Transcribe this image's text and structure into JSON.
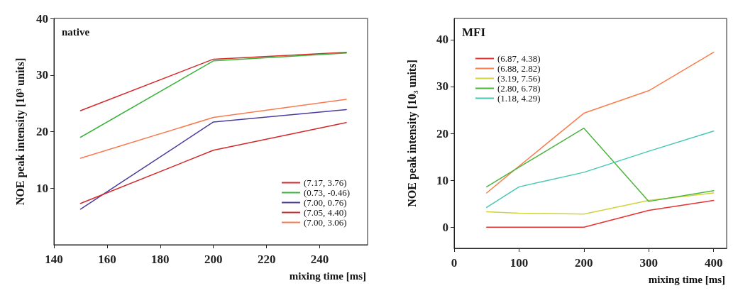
{
  "chart_data": [
    {
      "type": "line",
      "title": "native",
      "xlabel": "mixing time [ms]",
      "ylabel": "NOE peak intensity [10³ units]",
      "x": [
        150,
        200,
        250
      ],
      "xlim": [
        140,
        258
      ],
      "xticks": [
        140,
        160,
        180,
        200,
        220,
        240
      ],
      "ylim": [
        0,
        40
      ],
      "yticks": [
        10,
        20,
        30,
        40
      ],
      "grid": false,
      "legend": "bottom right",
      "marker": "none",
      "line_style": "solid",
      "series": [
        {
          "name": "(7.17, 3.76)",
          "color": "#d7282a",
          "values": [
            23.7,
            32.8,
            34.0
          ]
        },
        {
          "name": "(0.73, -0.46)",
          "color": "#3cb43c",
          "values": [
            19.0,
            32.5,
            33.9
          ]
        },
        {
          "name": "(7.00, 0.76)",
          "color": "#4a3c9c",
          "values": [
            6.3,
            21.7,
            23.9
          ]
        },
        {
          "name": "(7.05, 4.40)",
          "color": "#d22a2a",
          "values": [
            7.3,
            16.7,
            21.6
          ]
        },
        {
          "name": "(7.00, 3.06)",
          "color": "#fa7a50",
          "values": [
            15.3,
            22.5,
            25.7
          ]
        }
      ]
    },
    {
      "type": "line",
      "title": "MFI",
      "xlabel": "mixing time [ms]",
      "ylabel": "NOE peak intensity [10₃ units]",
      "x": [
        50,
        100,
        200,
        300,
        400
      ],
      "xlim": [
        0,
        420
      ],
      "xticks": [
        0,
        100,
        200,
        300,
        400
      ],
      "ylim": [
        -4.5,
        44.5
      ],
      "yticks": [
        0,
        10,
        20,
        30,
        40
      ],
      "grid": false,
      "legend": "top left",
      "marker": "none",
      "line_style": "solid",
      "series": [
        {
          "name": "(6.87, 4.38)",
          "color": "#e63232",
          "values": [
            0,
            0,
            0,
            3.6,
            5.7
          ]
        },
        {
          "name": "(6.88, 2.82)",
          "color": "#fa7d4b",
          "values": [
            7.3,
            13.0,
            24.3,
            29.1,
            37.3
          ]
        },
        {
          "name": "(3.19, 7.56)",
          "color": "#d2d23c",
          "values": [
            3.3,
            3.0,
            2.8,
            5.7,
            7.3
          ]
        },
        {
          "name": "(2.80, 6.78)",
          "color": "#4bb43c",
          "values": [
            8.6,
            12.8,
            21.1,
            5.5,
            7.8
          ]
        },
        {
          "name": "(1.18, 4.29)",
          "color": "#46c8b4",
          "values": [
            4.2,
            8.6,
            11.7,
            16.2,
            20.5
          ]
        }
      ]
    }
  ]
}
